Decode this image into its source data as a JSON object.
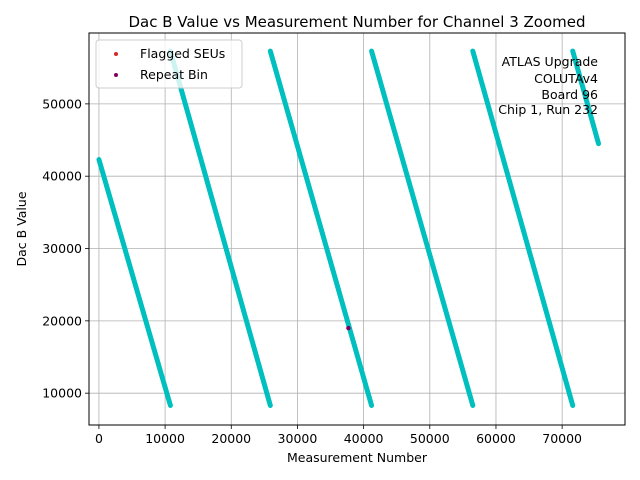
{
  "chart_data": {
    "type": "scatter",
    "title": "Dac B Value vs Measurement Number for Channel 3 Zoomed",
    "xlabel": "Measurement Number",
    "ylabel": "Dac B Value",
    "xlim": [
      -1500,
      79500
    ],
    "ylim": [
      5600,
      59800
    ],
    "xticks": [
      0,
      10000,
      20000,
      30000,
      40000,
      50000,
      60000,
      70000
    ],
    "yticks": [
      10000,
      20000,
      30000,
      40000,
      50000
    ],
    "grid": true,
    "legend_position": "top-left",
    "annotation_lines": [
      "ATLAS Upgrade",
      "COLUTAv4",
      "Board 96",
      "Chip 1, Run 232"
    ],
    "series": [
      {
        "name": "",
        "color": "#00bfbf",
        "style": "dense-points",
        "segments": [
          {
            "x": [
              0,
              10800
            ],
            "y": [
              42300,
              8300
            ]
          },
          {
            "x": [
              10800,
              25900
            ],
            "y": [
              57300,
              8300
            ]
          },
          {
            "x": [
              25900,
              41200
            ],
            "y": [
              57300,
              8300
            ]
          },
          {
            "x": [
              41200,
              56500
            ],
            "y": [
              57300,
              8300
            ]
          },
          {
            "x": [
              56500,
              71600
            ],
            "y": [
              57300,
              8300
            ]
          },
          {
            "x": [
              71600,
              75500
            ],
            "y": [
              57300,
              44500
            ]
          }
        ]
      },
      {
        "name": "Flagged SEUs",
        "color": "#d62728",
        "points": []
      },
      {
        "name": "Repeat Bin",
        "color": "#800060",
        "points": [
          {
            "x": 37700,
            "y": 19000
          }
        ]
      }
    ]
  }
}
